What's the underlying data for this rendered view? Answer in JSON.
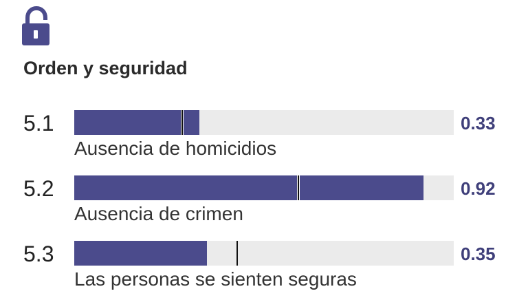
{
  "header": {
    "icon": "lock-icon",
    "title": "Orden y seguridad"
  },
  "colors": {
    "bar_fill": "#4b4b8c",
    "bar_track": "#ebebeb",
    "value_text": "#3f3f7a",
    "marker": "#111111"
  },
  "chart_data": {
    "type": "bar",
    "title": "Orden y seguridad",
    "orientation": "horizontal",
    "xlim": [
      0,
      1
    ],
    "categories": [
      "Ausencia de homicidios",
      "Ausencia de crimen",
      "Las personas se sienten seguras"
    ],
    "codes": [
      "5.1",
      "5.2",
      "5.3"
    ],
    "values": [
      0.33,
      0.92,
      0.35
    ],
    "value_labels": [
      "0.33",
      "0.92",
      "0.35"
    ],
    "reference_markers": [
      0.285,
      0.59,
      0.43
    ]
  }
}
